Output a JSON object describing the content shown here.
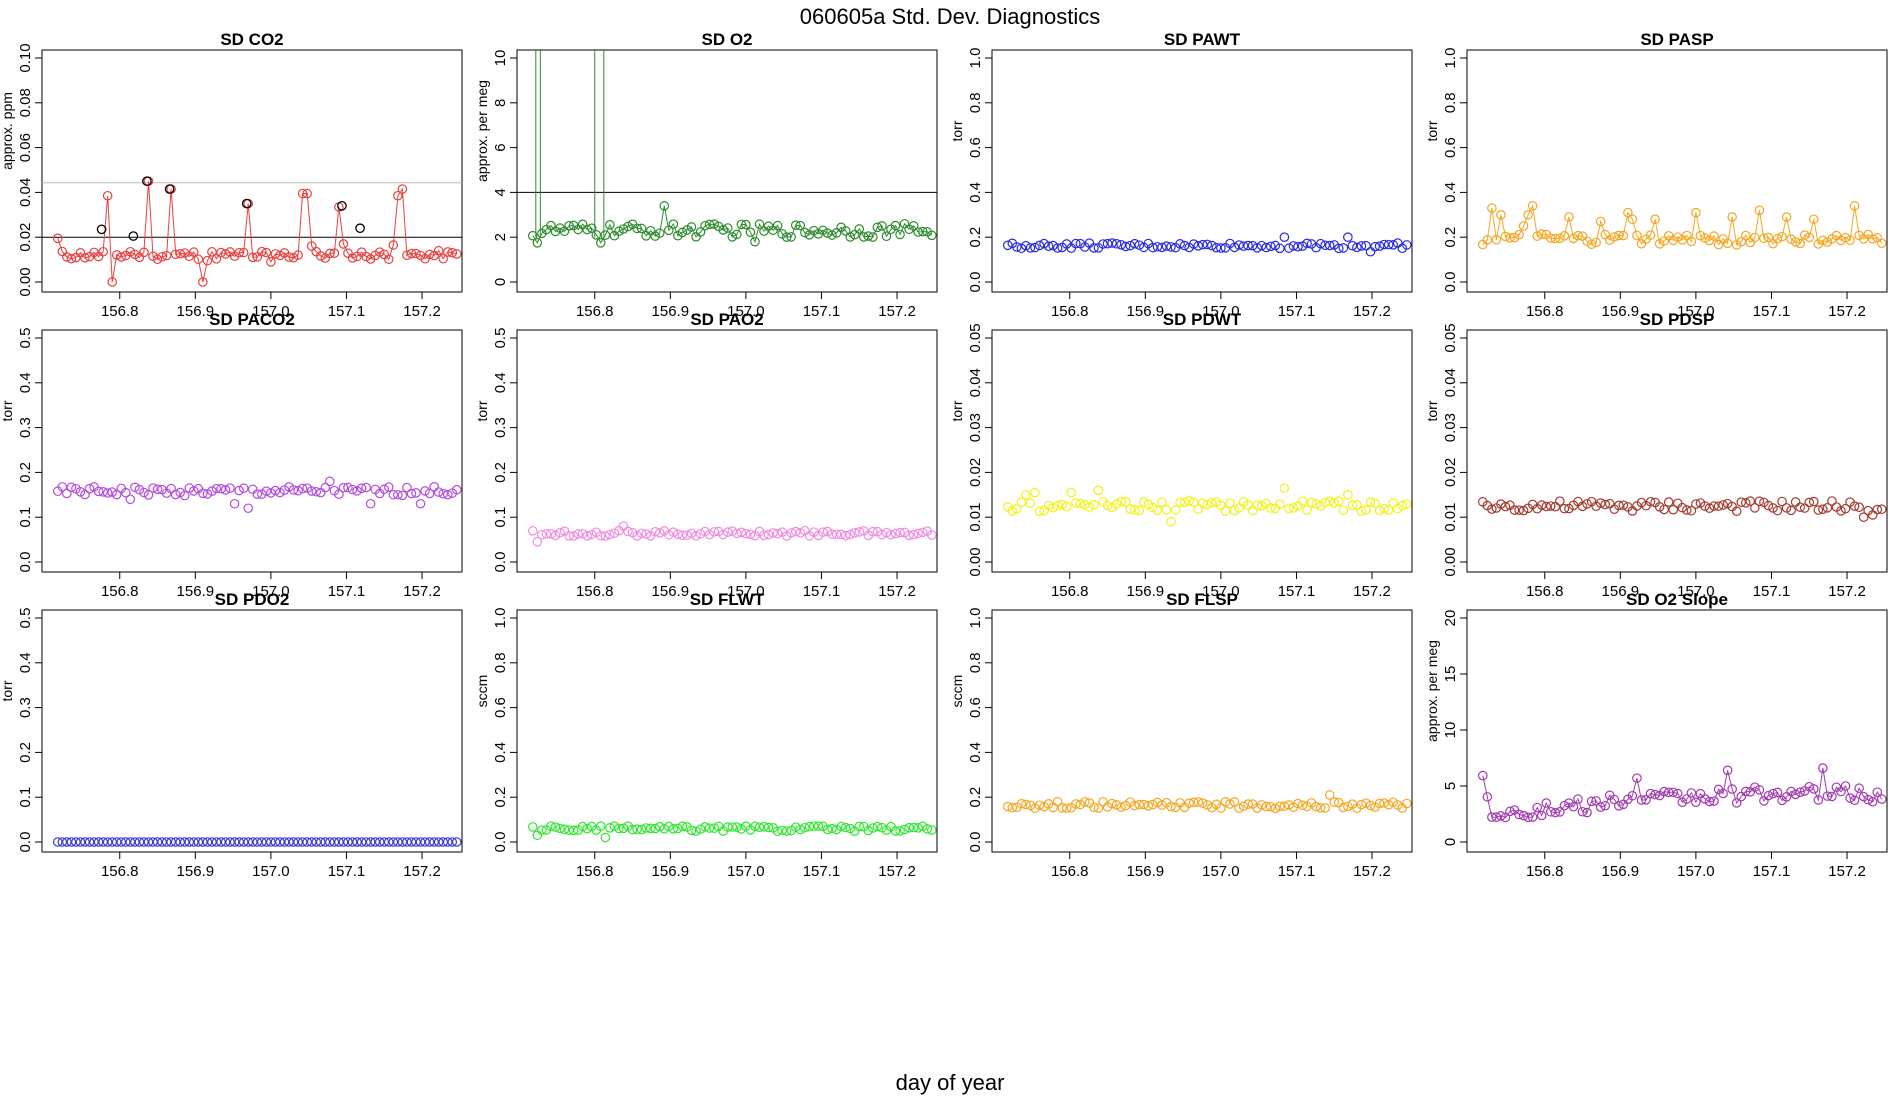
{
  "title": "060605a   Std. Dev. Diagnostics",
  "xlabel": "day of year",
  "chart_data": [
    {
      "type": "scatter",
      "title": "SD CO2",
      "ylabel": "approx. ppm",
      "color": "#e8413f",
      "ylim": [
        0,
        0.1
      ],
      "yticks": [
        "0.00",
        "0.02",
        "0.04",
        "0.06",
        "0.08",
        "0.10"
      ],
      "xlim": [
        156.713,
        157.237
      ],
      "xticks": [
        "156.8",
        "156.9",
        "157.0",
        "157.1",
        "157.2"
      ],
      "hlines": [
        {
          "y": 0.02,
          "color": "#000000"
        },
        {
          "y": 0.0443,
          "color": "#bbbbbb"
        }
      ],
      "base": 0.012,
      "noise": 0.002,
      "spikes": [
        [
          156.718,
          0.0195
        ],
        [
          156.776,
          0.0135
        ],
        [
          156.782,
          0.0385
        ],
        [
          156.788,
          0.0
        ],
        [
          156.812,
          0.0135
        ],
        [
          156.836,
          0.045
        ],
        [
          156.842,
          0.0115
        ],
        [
          156.866,
          0.0415
        ],
        [
          156.908,
          0.0
        ],
        [
          156.914,
          0.0095
        ],
        [
          156.968,
          0.035
        ],
        [
          156.974,
          0.011
        ],
        [
          156.998,
          0.009
        ],
        [
          157.04,
          0.0395
        ],
        [
          157.046,
          0.0395
        ],
        [
          157.052,
          0.016
        ],
        [
          157.088,
          0.0335
        ],
        [
          157.094,
          0.017
        ],
        [
          157.16,
          0.0165
        ],
        [
          157.166,
          0.0385
        ],
        [
          157.172,
          0.0415
        ]
      ],
      "outlined": [
        [
          156.776,
          0.0235
        ],
        [
          156.818,
          0.0205
        ],
        [
          156.836,
          0.045
        ],
        [
          156.866,
          0.0415
        ],
        [
          156.968,
          0.035
        ],
        [
          157.094,
          0.034
        ],
        [
          157.118,
          0.024
        ]
      ],
      "connect": true
    },
    {
      "type": "scatter",
      "title": "SD O2",
      "ylabel": "approx. per meg",
      "color": "#2e8b2e",
      "ylim": [
        0,
        10
      ],
      "yticks": [
        "0",
        "2",
        "4",
        "6",
        "8",
        "10"
      ],
      "xlim": [
        156.713,
        157.237
      ],
      "xticks": [
        "156.8",
        "156.9",
        "157.0",
        "157.1",
        "157.2"
      ],
      "hlines": [
        {
          "y": 4,
          "color": "#000000"
        }
      ],
      "base": 2.3,
      "noise": 0.3,
      "spikes": [
        [
          156.722,
          1.75
        ],
        [
          156.806,
          1.75
        ],
        [
          156.89,
          3.4
        ],
        [
          157.01,
          1.8
        ]
      ],
      "vlines": [
        156.722,
        156.728,
        156.8,
        156.812
      ],
      "connect": true
    },
    {
      "type": "scatter",
      "title": "SD PAWT",
      "ylabel": "torr",
      "color": "#2929e0",
      "ylim": [
        0,
        1
      ],
      "yticks": [
        "0.0",
        "0.2",
        "0.4",
        "0.6",
        "0.8",
        "1.0"
      ],
      "xlim": [
        156.713,
        157.237
      ],
      "xticks": [
        "156.8",
        "156.9",
        "157.0",
        "157.1",
        "157.2"
      ],
      "hlines": [],
      "base": 0.162,
      "noise": 0.012,
      "spikes": [
        [
          157.086,
          0.2
        ],
        [
          157.17,
          0.2
        ],
        [
          157.2,
          0.135
        ]
      ],
      "connect": false
    },
    {
      "type": "scatter",
      "title": "SD PASP",
      "ylabel": "torr",
      "color": "#f5a623",
      "ylim": [
        0,
        1
      ],
      "yticks": [
        "0.0",
        "0.2",
        "0.4",
        "0.6",
        "0.8",
        "1.0"
      ],
      "xlim": [
        156.713,
        157.237
      ],
      "xticks": [
        "156.8",
        "156.9",
        "157.0",
        "157.1",
        "157.2"
      ],
      "hlines": [],
      "base": 0.19,
      "noise": 0.025,
      "spikes": [
        [
          156.728,
          0.33
        ],
        [
          156.74,
          0.3
        ],
        [
          156.77,
          0.25
        ],
        [
          156.776,
          0.3
        ],
        [
          156.782,
          0.34
        ],
        [
          156.83,
          0.29
        ],
        [
          156.872,
          0.27
        ],
        [
          156.908,
          0.31
        ],
        [
          156.914,
          0.28
        ],
        [
          156.944,
          0.28
        ],
        [
          156.998,
          0.31
        ],
        [
          157.046,
          0.29
        ],
        [
          157.082,
          0.32
        ],
        [
          157.118,
          0.29
        ],
        [
          157.154,
          0.28
        ],
        [
          157.208,
          0.34
        ]
      ],
      "connect": true
    },
    {
      "type": "scatter",
      "title": "SD PACO2",
      "ylabel": "torr",
      "color": "#b44be0",
      "ylim": [
        0,
        0.5
      ],
      "yticks": [
        "0.0",
        "0.1",
        "0.2",
        "0.3",
        "0.4",
        "0.5"
      ],
      "xlim": [
        156.713,
        157.237
      ],
      "xticks": [
        "156.8",
        "156.9",
        "157.0",
        "157.1",
        "157.2"
      ],
      "hlines": [],
      "base": 0.158,
      "noise": 0.01,
      "spikes": [
        [
          156.812,
          0.14
        ],
        [
          156.95,
          0.13
        ],
        [
          156.968,
          0.12
        ],
        [
          157.076,
          0.18
        ],
        [
          157.13,
          0.13
        ],
        [
          157.2,
          0.13
        ]
      ],
      "connect": false
    },
    {
      "type": "scatter",
      "title": "SD PAO2",
      "ylabel": "torr",
      "color": "#f08ce0",
      "ylim": [
        0,
        0.5
      ],
      "yticks": [
        "0.0",
        "0.1",
        "0.2",
        "0.3",
        "0.4",
        "0.5"
      ],
      "xlim": [
        156.713,
        157.237
      ],
      "xticks": [
        "156.8",
        "156.9",
        "157.0",
        "157.1",
        "157.2"
      ],
      "hlines": [],
      "base": 0.064,
      "noise": 0.006,
      "spikes": [
        [
          156.722,
          0.045
        ],
        [
          156.836,
          0.08
        ]
      ],
      "connect": false
    },
    {
      "type": "scatter",
      "title": "SD PDWT",
      "ylabel": "torr",
      "color": "#f2f21a",
      "ylim": [
        0,
        0.05
      ],
      "yticks": [
        "0.00",
        "0.01",
        "0.02",
        "0.03",
        "0.04",
        "0.05"
      ],
      "xlim": [
        156.713,
        157.237
      ],
      "xticks": [
        "156.8",
        "156.9",
        "157.0",
        "157.1",
        "157.2"
      ],
      "hlines": [],
      "base": 0.0125,
      "noise": 0.0012,
      "spikes": [
        [
          156.74,
          0.015
        ],
        [
          156.752,
          0.0155
        ],
        [
          156.8,
          0.0155
        ],
        [
          156.836,
          0.016
        ],
        [
          156.932,
          0.009
        ],
        [
          157.082,
          0.0165
        ],
        [
          157.17,
          0.015
        ]
      ],
      "connect": false
    },
    {
      "type": "scatter",
      "title": "SD PDSP",
      "ylabel": "torr",
      "color": "#a33b2e",
      "ylim": [
        0,
        0.05
      ],
      "yticks": [
        "0.00",
        "0.01",
        "0.02",
        "0.03",
        "0.04",
        "0.05"
      ],
      "xlim": [
        156.713,
        157.237
      ],
      "xticks": [
        "156.8",
        "156.9",
        "157.0",
        "157.1",
        "157.2"
      ],
      "hlines": [],
      "base": 0.0125,
      "noise": 0.0012,
      "spikes": [
        [
          157.22,
          0.01
        ],
        [
          157.232,
          0.0105
        ]
      ],
      "connect": false
    },
    {
      "type": "scatter",
      "title": "SD PDO2",
      "ylabel": "torr",
      "color": "#3a3ad0",
      "ylim": [
        0,
        0.5
      ],
      "yticks": [
        "0.0",
        "0.1",
        "0.2",
        "0.3",
        "0.4",
        "0.5"
      ],
      "xlim": [
        156.713,
        157.237
      ],
      "xticks": [
        "156.8",
        "156.9",
        "157.0",
        "157.1",
        "157.2"
      ],
      "hlines": [],
      "base": 0.0,
      "noise": 0.0,
      "spikes": [],
      "connect": false
    },
    {
      "type": "scatter",
      "title": "SD FLWT",
      "ylabel": "sccm",
      "color": "#2ee82e",
      "ylim": [
        0,
        1
      ],
      "yticks": [
        "0.0",
        "0.2",
        "0.4",
        "0.6",
        "0.8",
        "1.0"
      ],
      "xlim": [
        156.713,
        157.237
      ],
      "xticks": [
        "156.8",
        "156.9",
        "157.0",
        "157.1",
        "157.2"
      ],
      "hlines": [],
      "base": 0.06,
      "noise": 0.012,
      "spikes": [
        [
          156.722,
          0.03
        ],
        [
          156.812,
          0.02
        ]
      ],
      "connect": false
    },
    {
      "type": "scatter",
      "title": "SD FLSP",
      "ylabel": "sccm",
      "color": "#f5a623",
      "ylim": [
        0,
        1
      ],
      "yticks": [
        "0.0",
        "0.2",
        "0.4",
        "0.6",
        "0.8",
        "1.0"
      ],
      "xlim": [
        156.713,
        157.237
      ],
      "xticks": [
        "156.8",
        "156.9",
        "157.0",
        "157.1",
        "157.2"
      ],
      "hlines": [],
      "base": 0.165,
      "noise": 0.015,
      "spikes": [
        [
          157.142,
          0.21
        ]
      ],
      "connect": false
    },
    {
      "type": "scatter",
      "title": "SD O2 Slope",
      "ylabel": "approx. per meg",
      "color": "#a23ab0",
      "ylim": [
        0,
        20
      ],
      "yticks": [
        "0",
        "5",
        "10",
        "15",
        "20"
      ],
      "xlim": [
        156.713,
        157.237
      ],
      "xticks": [
        "156.8",
        "156.9",
        "157.0",
        "157.1",
        "157.2"
      ],
      "hlines": [],
      "base": 0,
      "noise": 0,
      "trend": [
        [
          156.718,
          5.6
        ],
        [
          156.728,
          2.7
        ],
        [
          156.8,
          2.8
        ],
        [
          156.9,
          3.6
        ],
        [
          157.0,
          4.0
        ],
        [
          157.1,
          4.3
        ],
        [
          157.23,
          4.2
        ]
      ],
      "trend_noise": 0.7,
      "spikes": [
        [
          156.92,
          5.7
        ],
        [
          157.04,
          6.4
        ],
        [
          157.166,
          6.6
        ],
        [
          157.2,
          5.0
        ]
      ],
      "connect": true
    }
  ]
}
